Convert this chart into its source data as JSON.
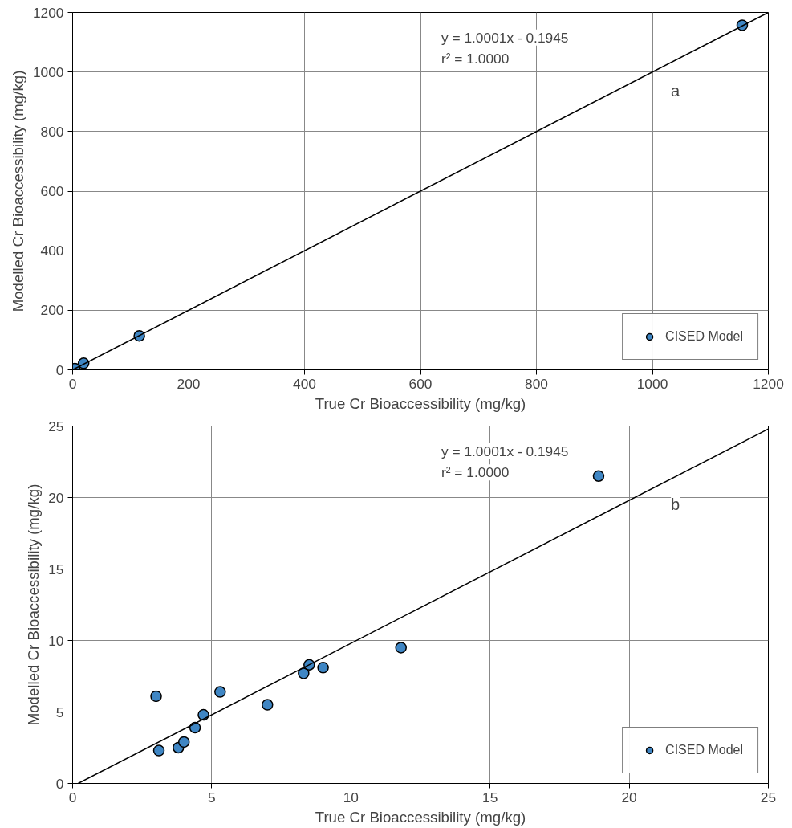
{
  "chart_data": [
    {
      "type": "scatter",
      "xlabel": "True Cr Bioaccessibility (mg/kg)",
      "ylabel": "Modelled Cr Bioaccessibility (mg/kg)",
      "xlim": [
        0,
        1200
      ],
      "ylim": [
        0,
        1200
      ],
      "xticks": [
        0,
        200,
        400,
        600,
        800,
        1000,
        1200
      ],
      "yticks": [
        0,
        200,
        400,
        600,
        800,
        1000,
        1200
      ],
      "grid": true,
      "legend": "bottom right",
      "marker": "circle",
      "annotations": [
        "y = 1.0001x - 0.1945",
        "r² = 1.0000",
        "a"
      ],
      "series": [
        {
          "name": "CISED Model",
          "color": "#3f86c4",
          "x": [
            4,
            19,
            115,
            1155
          ],
          "values": [
            4,
            22,
            114,
            1157
          ]
        },
        {
          "type": "line",
          "color": "#000000",
          "marker": "none",
          "x": [
            0,
            1200
          ],
          "values": [
            0,
            1200
          ]
        }
      ]
    },
    {
      "type": "scatter",
      "xlabel": "True Cr Bioaccessibility (mg/kg)",
      "ylabel": "Modelled Cr Bioaccessibility (mg/kg)",
      "xlim": [
        0,
        25
      ],
      "ylim": [
        0,
        25
      ],
      "xticks": [
        0,
        5,
        10,
        15,
        20,
        25
      ],
      "yticks": [
        0,
        5,
        10,
        15,
        20,
        25
      ],
      "grid": true,
      "legend": "bottom right",
      "marker": "circle",
      "annotations": [
        "y = 1.0001x - 0.1945",
        "r² = 1.0000",
        "b"
      ],
      "series": [
        {
          "name": "CISED Model",
          "color": "#3f86c4",
          "x": [
            3.0,
            5.3,
            3.1,
            3.8,
            4.0,
            4.4,
            4.7,
            7.0,
            8.3,
            8.5,
            9.0,
            11.8,
            18.9
          ],
          "values": [
            6.1,
            6.4,
            2.3,
            2.5,
            2.9,
            3.9,
            4.8,
            5.5,
            7.7,
            8.3,
            8.1,
            9.5,
            21.5
          ]
        },
        {
          "type": "line",
          "color": "#000000",
          "marker": "none",
          "x": [
            0.2,
            25
          ],
          "values": [
            0,
            24.8
          ]
        }
      ]
    }
  ]
}
